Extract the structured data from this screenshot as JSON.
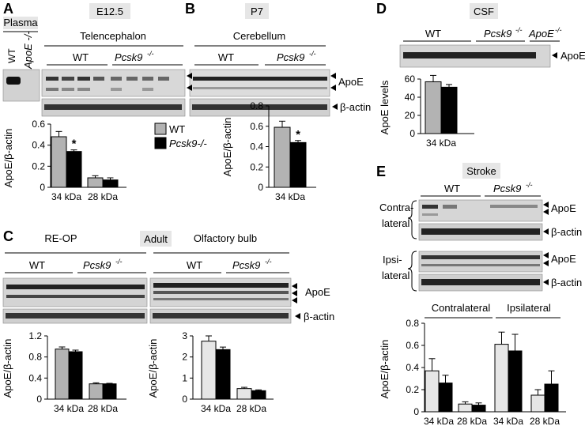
{
  "panels": {
    "A": {
      "letter": "A",
      "stage": "E12.5",
      "region": "Telencephalon",
      "plasma_label": "Plasma",
      "plasma_wt": "WT",
      "plasma_ko": "ApoE -/-",
      "group_wt": "WT",
      "group_ko": "Pcsk9",
      "group_ko_sup": "-/-",
      "blot_labels": [
        "ApoE",
        "β-actin"
      ],
      "legend": [
        "WT",
        "Pcsk9-/-"
      ],
      "asterisk": "*"
    },
    "B": {
      "letter": "B",
      "stage": "P7",
      "region": "Cerebellum",
      "group_wt": "WT",
      "group_ko": "Pcsk9",
      "group_ko_sup": "-/-",
      "asterisk": "*"
    },
    "C": {
      "letter": "C",
      "region1": "RE-OP",
      "stage": "Adult",
      "region2": "Olfactory bulb",
      "group_wt": "WT",
      "group_ko": "Pcsk9",
      "group_ko_sup": "-/-",
      "blot_labels": [
        "ApoE",
        "β-actin"
      ]
    },
    "D": {
      "letter": "D",
      "stage": "CSF",
      "group_wt": "WT",
      "group_ko": "Pcsk9",
      "group_ko_sup": "-/-",
      "group_apoe": "ApoE",
      "group_apoe_sup": "-/-",
      "blot_label": "ApoE"
    },
    "E": {
      "letter": "E",
      "stage": "Stroke",
      "group_wt": "WT",
      "group_ko": "Pcsk9",
      "group_ko_sup": "-/-",
      "contra_line1": "Contra-",
      "contra_line2": "lateral",
      "ipsi_line1": "Ipsi-",
      "ipsi_line2": "lateral",
      "blot_labels": [
        "ApoE",
        "β-actin"
      ],
      "chart_groups": [
        "Contralateral",
        "Ipsilateral"
      ]
    }
  },
  "colors": {
    "wt": "#b3b3b3",
    "wt_light": "#e6e6e6",
    "ko": "#000000"
  },
  "chart_data": [
    {
      "id": "A",
      "type": "bar",
      "categories": [
        "34 kDa",
        "28 kDa"
      ],
      "series": [
        {
          "name": "WT",
          "values": [
            0.48,
            0.09
          ],
          "errors": [
            0.05,
            0.02
          ]
        },
        {
          "name": "Pcsk9-/-",
          "values": [
            0.34,
            0.07
          ],
          "errors": [
            0.015,
            0.02
          ]
        }
      ],
      "ylabel": "ApoE/β-actin",
      "ylim": [
        0,
        0.6
      ],
      "yticks": [
        0,
        0.2,
        0.4,
        0.6
      ]
    },
    {
      "id": "B",
      "type": "bar",
      "categories": [
        "34 kDa"
      ],
      "series": [
        {
          "name": "WT",
          "values": [
            0.59
          ],
          "errors": [
            0.06
          ]
        },
        {
          "name": "Pcsk9-/-",
          "values": [
            0.44
          ],
          "errors": [
            0.02
          ]
        }
      ],
      "ylabel": "ApoE/β-actin",
      "ylim": [
        0,
        0.8
      ],
      "yticks": [
        0,
        0.2,
        0.4,
        0.6,
        0.8
      ]
    },
    {
      "id": "C1",
      "type": "bar",
      "categories": [
        "34 kDa",
        "28 kDa"
      ],
      "series": [
        {
          "name": "WT",
          "values": [
            0.95,
            0.29
          ],
          "errors": [
            0.04,
            0.02
          ]
        },
        {
          "name": "Pcsk9-/-",
          "values": [
            0.9,
            0.29
          ],
          "errors": [
            0.03,
            0.01
          ]
        }
      ],
      "ylabel": "ApoE/β-actin",
      "ylim": [
        0,
        1.2
      ],
      "yticks": [
        0,
        0.4,
        0.8,
        1.2
      ]
    },
    {
      "id": "C2",
      "type": "bar",
      "categories": [
        "34 kDa",
        "28 kDa"
      ],
      "series": [
        {
          "name": "WT",
          "values": [
            2.75,
            0.5
          ],
          "errors": [
            0.25,
            0.06
          ]
        },
        {
          "name": "Pcsk9-/-",
          "values": [
            2.35,
            0.4
          ],
          "errors": [
            0.12,
            0.04
          ]
        }
      ],
      "ylabel": "ApoE/β-actin",
      "ylim": [
        0,
        3
      ],
      "yticks": [
        0,
        1,
        2,
        3
      ]
    },
    {
      "id": "D",
      "type": "bar",
      "categories": [
        "34 kDa"
      ],
      "series": [
        {
          "name": "WT",
          "values": [
            57
          ],
          "errors": [
            7
          ]
        },
        {
          "name": "Pcsk9-/-",
          "values": [
            51
          ],
          "errors": [
            3
          ]
        }
      ],
      "ylabel": "ApoE levels",
      "ylim": [
        0,
        60
      ],
      "yticks": [
        0,
        20,
        40,
        60
      ]
    },
    {
      "id": "E",
      "type": "bar",
      "categories": [
        "34 kDa",
        "28 kDa",
        "34 kDa",
        "28 kDa"
      ],
      "series": [
        {
          "name": "WT",
          "values": [
            0.37,
            0.07,
            0.61,
            0.15
          ],
          "errors": [
            0.11,
            0.02,
            0.11,
            0.05
          ]
        },
        {
          "name": "Pcsk9-/-",
          "values": [
            0.26,
            0.06,
            0.55,
            0.25
          ],
          "errors": [
            0.07,
            0.02,
            0.15,
            0.12
          ]
        }
      ],
      "ylabel": "ApoE/β-actin",
      "ylim": [
        0,
        0.8
      ],
      "yticks": [
        0,
        0.2,
        0.4,
        0.6,
        0.8
      ]
    }
  ]
}
